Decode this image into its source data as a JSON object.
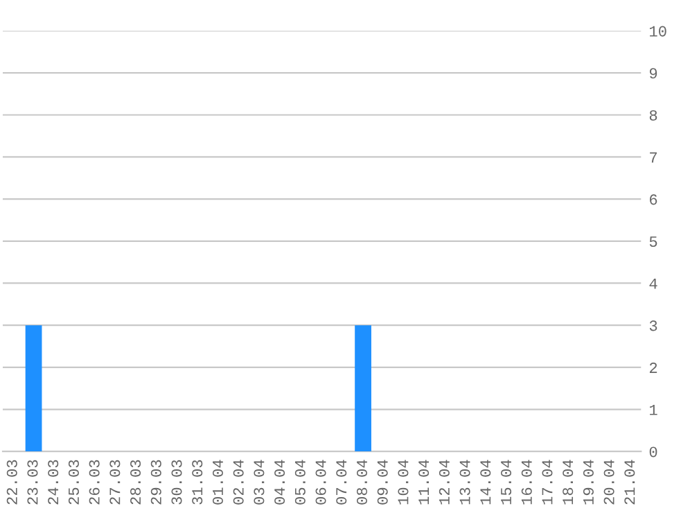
{
  "chart_data": {
    "type": "bar",
    "categories": [
      "22.03",
      "23.03",
      "24.03",
      "25.03",
      "26.03",
      "27.03",
      "28.03",
      "29.03",
      "30.03",
      "31.03",
      "01.04",
      "02.04",
      "03.04",
      "04.04",
      "05.04",
      "06.04",
      "07.04",
      "08.04",
      "09.04",
      "10.04",
      "11.04",
      "12.04",
      "13.04",
      "14.04",
      "15.04",
      "16.04",
      "17.04",
      "18.04",
      "19.04",
      "20.04",
      "21.04"
    ],
    "values": [
      0,
      3,
      0,
      0,
      0,
      0,
      0,
      0,
      0,
      0,
      0,
      0,
      0,
      0,
      0,
      0,
      0,
      3,
      0,
      0,
      0,
      0,
      0,
      0,
      0,
      0,
      0,
      0,
      0,
      0,
      0
    ],
    "color": "#1e90ff",
    "ylim": [
      0,
      10
    ],
    "yticks": [
      0,
      1,
      2,
      3,
      4,
      5,
      6,
      7,
      8,
      9,
      10
    ],
    "grid": "y",
    "legend": false
  }
}
